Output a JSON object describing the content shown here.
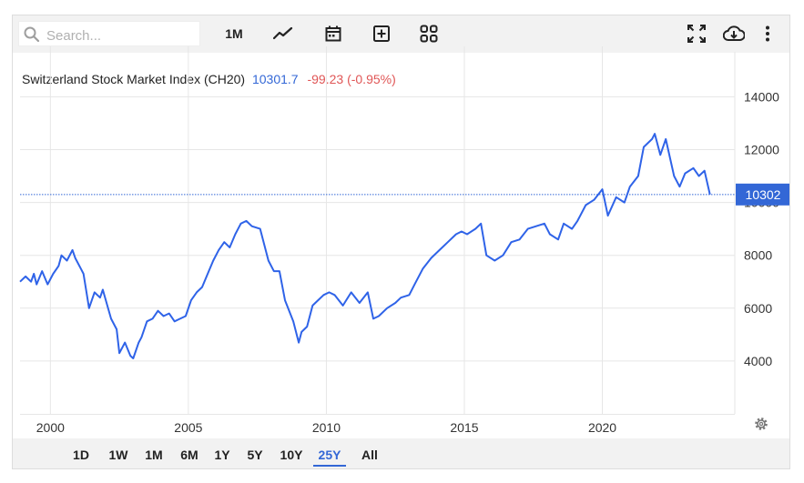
{
  "toolbar": {
    "search_placeholder": "Search...",
    "period_label": "1M",
    "icons": [
      "line-chart-icon",
      "calendar-icon",
      "add-box-icon",
      "grid-icon",
      "fullscreen-icon",
      "download-cloud-icon",
      "more-vertical-icon"
    ]
  },
  "header": {
    "title": "Switzerland Stock Market Index (CH20)",
    "price": "10301.7",
    "change": "-99.23 (-0.95%)"
  },
  "last_label": "10302",
  "ranges": [
    "1D",
    "1W",
    "1M",
    "6M",
    "1Y",
    "5Y",
    "10Y",
    "25Y",
    "All"
  ],
  "active_range": "25Y",
  "colors": {
    "line": "#2f63e8",
    "accent": "#3367d6",
    "negative": "#e05656",
    "grid": "#e6e6e6"
  },
  "chart_data": {
    "type": "line",
    "title": "Switzerland Stock Market Index (CH20)",
    "x_ticks": [
      "2000",
      "2005",
      "2010",
      "2015",
      "2020"
    ],
    "y_ticks": [
      "4000",
      "6000",
      "8000",
      "10000",
      "12000",
      "14000"
    ],
    "xlim": [
      1998.9,
      2024.8
    ],
    "ylim": [
      2000,
      15700
    ],
    "last_value": 10302,
    "series": [
      {
        "x": [
          1998.9,
          1999.1,
          1999.3,
          1999.4,
          1999.5,
          1999.7,
          1999.9,
          2000.1,
          2000.3,
          2000.4,
          2000.6,
          2000.8,
          2000.9,
          2001.1,
          2001.2,
          2001.4,
          2001.6,
          2001.8,
          2001.9,
          2002.2,
          2002.4,
          2002.5,
          2002.7,
          2002.9,
          2003.0,
          2003.2,
          2003.3,
          2003.5,
          2003.7,
          2003.9,
          2004.1,
          2004.3,
          2004.5,
          2004.7,
          2004.9,
          2005.1,
          2005.3,
          2005.5,
          2005.7,
          2005.9,
          2006.1,
          2006.3,
          2006.5,
          2006.7,
          2006.9,
          2007.1,
          2007.3,
          2007.6,
          2007.9,
          2008.1,
          2008.3,
          2008.5,
          2008.8,
          2009.0,
          2009.1,
          2009.3,
          2009.5,
          2009.7,
          2009.9,
          2010.1,
          2010.3,
          2010.6,
          2010.9,
          2011.2,
          2011.5,
          2011.7,
          2011.9,
          2012.2,
          2012.5,
          2012.7,
          2013.0,
          2013.2,
          2013.5,
          2013.8,
          2014.1,
          2014.4,
          2014.7,
          2014.9,
          2015.1,
          2015.4,
          2015.6,
          2015.8,
          2016.1,
          2016.4,
          2016.7,
          2017.0,
          2017.3,
          2017.6,
          2017.9,
          2018.1,
          2018.4,
          2018.6,
          2018.9,
          2019.1,
          2019.4,
          2019.7,
          2020.0,
          2020.2,
          2020.5,
          2020.8,
          2021.0,
          2021.3,
          2021.5,
          2021.8,
          2021.9,
          2022.1,
          2022.3,
          2022.6,
          2022.8,
          2023.0,
          2023.3,
          2023.5,
          2023.7,
          2023.9
        ],
        "values": [
          7000,
          7200,
          7000,
          7300,
          6900,
          7400,
          6900,
          7300,
          7600,
          8000,
          7800,
          8200,
          7900,
          7500,
          7300,
          6000,
          6600,
          6400,
          6700,
          5600,
          5200,
          4300,
          4700,
          4200,
          4100,
          4700,
          4900,
          5500,
          5600,
          5900,
          5700,
          5800,
          5500,
          5600,
          5700,
          6300,
          6600,
          6800,
          7300,
          7800,
          8200,
          8500,
          8300,
          8800,
          9200,
          9300,
          9100,
          9000,
          7800,
          7400,
          7400,
          6300,
          5500,
          4700,
          5100,
          5300,
          6100,
          6300,
          6500,
          6600,
          6500,
          6100,
          6600,
          6200,
          6600,
          5600,
          5700,
          6000,
          6200,
          6400,
          6500,
          6900,
          7500,
          7900,
          8200,
          8500,
          8800,
          8900,
          8800,
          9000,
          9200,
          8000,
          7800,
          8000,
          8500,
          8600,
          9000,
          9100,
          9200,
          8800,
          8600,
          9200,
          9000,
          9300,
          9900,
          10100,
          10500,
          9500,
          10200,
          10000,
          10600,
          11000,
          12100,
          12400,
          12600,
          11800,
          12400,
          11000,
          10600,
          11100,
          11300,
          11000,
          11200,
          10300
        ]
      }
    ]
  }
}
